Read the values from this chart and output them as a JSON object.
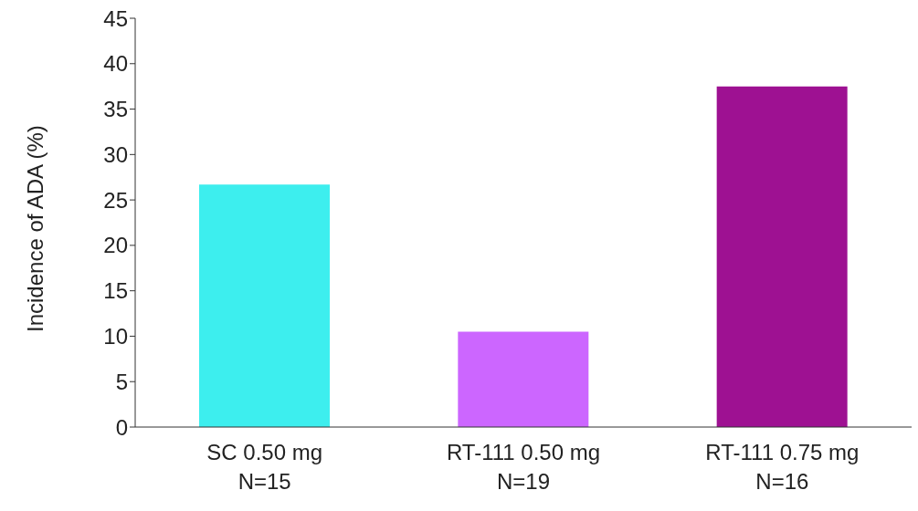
{
  "chart_data": {
    "type": "bar",
    "ylabel": "Incidence of ADA (%)",
    "categories": [
      "SC 0.50 mg\nN=15",
      "RT-111 0.50 mg\nN=19",
      "RT-111 0.75 mg\nN=16"
    ],
    "values": [
      26.7,
      10.5,
      37.5
    ],
    "colors": [
      "#3deeee",
      "#cc66ff",
      "#9e1192"
    ],
    "ylim": [
      0,
      45
    ],
    "yticks": [
      0,
      5,
      10,
      15,
      20,
      25,
      30,
      35,
      40,
      45
    ],
    "grid": false,
    "legend": false
  }
}
